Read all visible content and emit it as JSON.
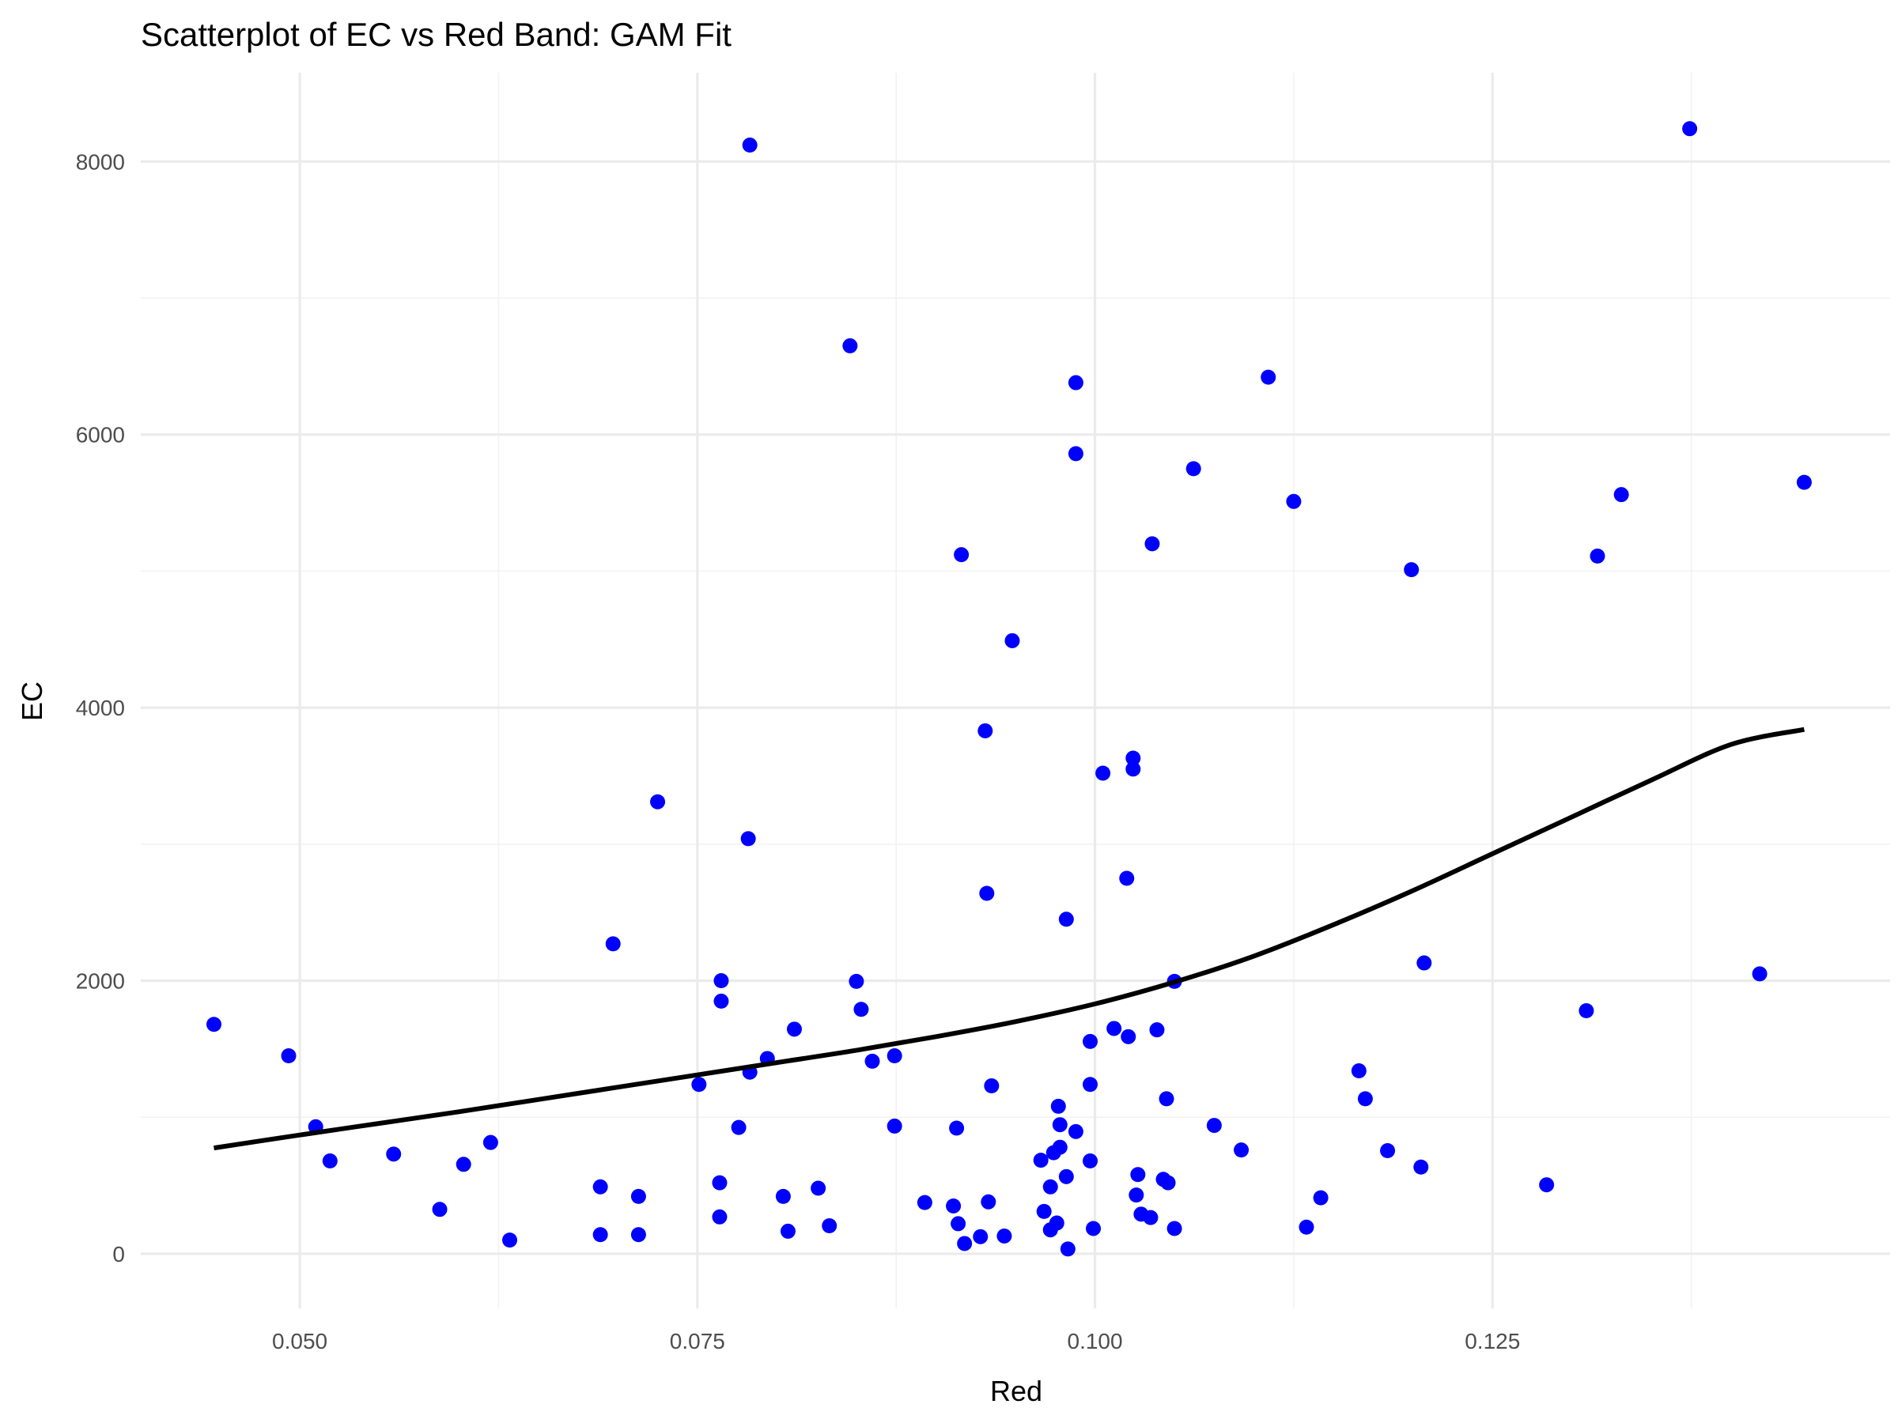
{
  "chart_data": {
    "type": "scatter",
    "title": "Scatterplot of EC vs Red Band: GAM Fit",
    "xlabel": "Red",
    "ylabel": "EC",
    "xlim": [
      0.04,
      0.15
    ],
    "ylim": [
      -400,
      8650
    ],
    "x_ticks": [
      0.05,
      0.075,
      0.1,
      0.125
    ],
    "x_tick_labels": [
      "0.050",
      "0.075",
      "0.100",
      "0.125"
    ],
    "y_ticks": [
      0,
      2000,
      4000,
      6000,
      8000
    ],
    "y_tick_labels": [
      "0",
      "2000",
      "4000",
      "6000",
      "8000"
    ],
    "grid": true,
    "point_color": "#0000ff",
    "fit_color": "#000000",
    "points": [
      {
        "x": 0.0446,
        "y": 1680
      },
      {
        "x": 0.0493,
        "y": 1450
      },
      {
        "x": 0.051,
        "y": 930
      },
      {
        "x": 0.0519,
        "y": 680
      },
      {
        "x": 0.0559,
        "y": 730
      },
      {
        "x": 0.0588,
        "y": 325
      },
      {
        "x": 0.0603,
        "y": 655
      },
      {
        "x": 0.062,
        "y": 815
      },
      {
        "x": 0.0632,
        "y": 100
      },
      {
        "x": 0.0689,
        "y": 490
      },
      {
        "x": 0.0689,
        "y": 140
      },
      {
        "x": 0.0697,
        "y": 2270
      },
      {
        "x": 0.0713,
        "y": 420
      },
      {
        "x": 0.0713,
        "y": 140
      },
      {
        "x": 0.0725,
        "y": 3310
      },
      {
        "x": 0.0751,
        "y": 1240
      },
      {
        "x": 0.0764,
        "y": 520
      },
      {
        "x": 0.0764,
        "y": 270
      },
      {
        "x": 0.0765,
        "y": 2000
      },
      {
        "x": 0.0765,
        "y": 1850
      },
      {
        "x": 0.0776,
        "y": 925
      },
      {
        "x": 0.0783,
        "y": 8120
      },
      {
        "x": 0.0782,
        "y": 3040
      },
      {
        "x": 0.0783,
        "y": 1330
      },
      {
        "x": 0.0794,
        "y": 1430
      },
      {
        "x": 0.0804,
        "y": 420
      },
      {
        "x": 0.0807,
        "y": 165
      },
      {
        "x": 0.0811,
        "y": 1645
      },
      {
        "x": 0.0826,
        "y": 480
      },
      {
        "x": 0.0833,
        "y": 205
      },
      {
        "x": 0.0846,
        "y": 6650
      },
      {
        "x": 0.085,
        "y": 1995
      },
      {
        "x": 0.0853,
        "y": 1790
      },
      {
        "x": 0.086,
        "y": 1410
      },
      {
        "x": 0.0874,
        "y": 1450
      },
      {
        "x": 0.0874,
        "y": 935
      },
      {
        "x": 0.0893,
        "y": 375
      },
      {
        "x": 0.0913,
        "y": 920
      },
      {
        "x": 0.0911,
        "y": 350
      },
      {
        "x": 0.0914,
        "y": 220
      },
      {
        "x": 0.0916,
        "y": 5120
      },
      {
        "x": 0.0918,
        "y": 75
      },
      {
        "x": 0.0928,
        "y": 125
      },
      {
        "x": 0.0931,
        "y": 3830
      },
      {
        "x": 0.0932,
        "y": 2640
      },
      {
        "x": 0.0933,
        "y": 380
      },
      {
        "x": 0.0935,
        "y": 1230
      },
      {
        "x": 0.0943,
        "y": 130
      },
      {
        "x": 0.0948,
        "y": 4490
      },
      {
        "x": 0.0966,
        "y": 685
      },
      {
        "x": 0.0968,
        "y": 310
      },
      {
        "x": 0.0972,
        "y": 490
      },
      {
        "x": 0.0972,
        "y": 175
      },
      {
        "x": 0.0974,
        "y": 740
      },
      {
        "x": 0.0976,
        "y": 225
      },
      {
        "x": 0.0977,
        "y": 1080
      },
      {
        "x": 0.0978,
        "y": 945
      },
      {
        "x": 0.0978,
        "y": 780
      },
      {
        "x": 0.0982,
        "y": 2450
      },
      {
        "x": 0.0982,
        "y": 565
      },
      {
        "x": 0.0983,
        "y": 35
      },
      {
        "x": 0.0988,
        "y": 6380
      },
      {
        "x": 0.0988,
        "y": 5860
      },
      {
        "x": 0.0988,
        "y": 895
      },
      {
        "x": 0.0997,
        "y": 1555
      },
      {
        "x": 0.0997,
        "y": 1240
      },
      {
        "x": 0.0997,
        "y": 680
      },
      {
        "x": 0.0999,
        "y": 185
      },
      {
        "x": 0.1005,
        "y": 3520
      },
      {
        "x": 0.1012,
        "y": 1650
      },
      {
        "x": 0.102,
        "y": 2750
      },
      {
        "x": 0.1021,
        "y": 1590
      },
      {
        "x": 0.1024,
        "y": 3630
      },
      {
        "x": 0.1024,
        "y": 3550
      },
      {
        "x": 0.1026,
        "y": 430
      },
      {
        "x": 0.1027,
        "y": 580
      },
      {
        "x": 0.1029,
        "y": 290
      },
      {
        "x": 0.1036,
        "y": 5200
      },
      {
        "x": 0.1035,
        "y": 265
      },
      {
        "x": 0.1039,
        "y": 1640
      },
      {
        "x": 0.1043,
        "y": 545
      },
      {
        "x": 0.1045,
        "y": 1135
      },
      {
        "x": 0.1046,
        "y": 520
      },
      {
        "x": 0.105,
        "y": 1995
      },
      {
        "x": 0.105,
        "y": 185
      },
      {
        "x": 0.1062,
        "y": 5750
      },
      {
        "x": 0.1075,
        "y": 940
      },
      {
        "x": 0.1092,
        "y": 760
      },
      {
        "x": 0.1109,
        "y": 6420
      },
      {
        "x": 0.1125,
        "y": 5510
      },
      {
        "x": 0.1133,
        "y": 195
      },
      {
        "x": 0.1142,
        "y": 410
      },
      {
        "x": 0.1166,
        "y": 1340
      },
      {
        "x": 0.117,
        "y": 1135
      },
      {
        "x": 0.1184,
        "y": 755
      },
      {
        "x": 0.1199,
        "y": 5010
      },
      {
        "x": 0.1205,
        "y": 635
      },
      {
        "x": 0.1207,
        "y": 2130
      },
      {
        "x": 0.1284,
        "y": 505
      },
      {
        "x": 0.1309,
        "y": 1780
      },
      {
        "x": 0.1316,
        "y": 5110
      },
      {
        "x": 0.1331,
        "y": 5560
      },
      {
        "x": 0.1374,
        "y": 8240
      },
      {
        "x": 0.1418,
        "y": 2050
      },
      {
        "x": 0.1446,
        "y": 5650
      }
    ],
    "fit": {
      "name": "GAM Fit",
      "x": [
        0.0446,
        0.05,
        0.055,
        0.06,
        0.065,
        0.07,
        0.075,
        0.08,
        0.085,
        0.09,
        0.095,
        0.1,
        0.105,
        0.11,
        0.115,
        0.12,
        0.125,
        0.13,
        0.135,
        0.14,
        0.1446
      ],
      "y": [
        775,
        870,
        955,
        1040,
        1130,
        1220,
        1310,
        1400,
        1490,
        1590,
        1700,
        1830,
        1990,
        2180,
        2410,
        2660,
        2930,
        3200,
        3470,
        3730,
        3840
      ]
    }
  }
}
